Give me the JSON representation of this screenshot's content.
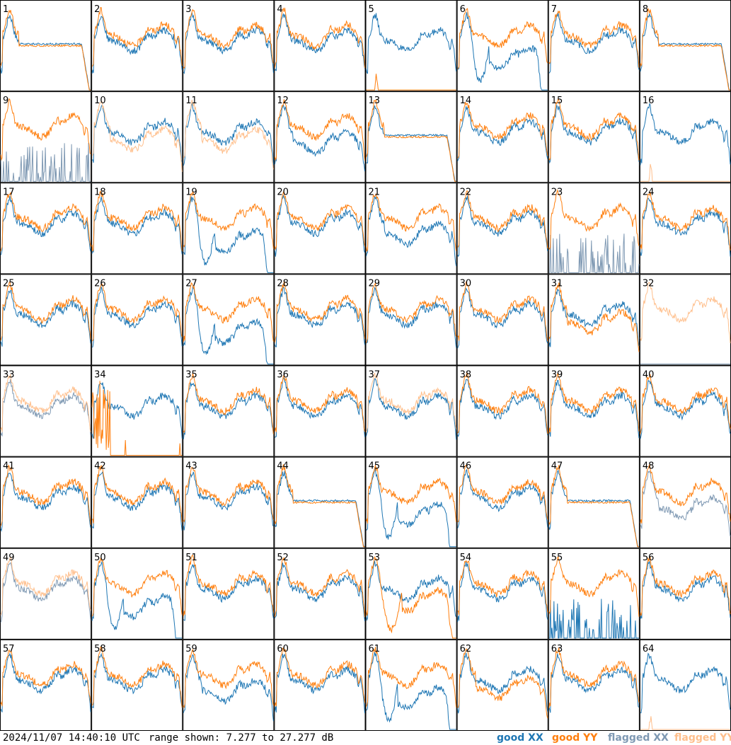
{
  "footer": {
    "timestamp": "2024/11/07 14:40:10 UTC",
    "range_text": "range shown: 7.277 to 27.277 dB"
  },
  "legend": {
    "good_xx": "good XX",
    "good_yy": "good YY",
    "flagged_xx": "flagged XX",
    "flagged_yy": "flagged YY"
  },
  "colors": {
    "good_xx": "#1f77b4",
    "good_yy": "#ff7f0e",
    "flagged_xx": "#7f99b3",
    "flagged_yy": "#ffbf8c",
    "frame": "#000000"
  },
  "chart_data": {
    "type": "line",
    "title": "",
    "ylim": [
      7.277,
      27.277
    ],
    "yunit": "dB",
    "grid": false,
    "layout": "8x8 small multiples",
    "series_names": [
      "good XX",
      "good YY",
      "flagged XX",
      "flagged YY"
    ],
    "panels": [
      {
        "id": "1",
        "xx": "good",
        "yy": "good",
        "shape": "drop_taper"
      },
      {
        "id": "2",
        "xx": "good",
        "yy": "good",
        "shape": "normal"
      },
      {
        "id": "3",
        "xx": "good",
        "yy": "good",
        "shape": "normal"
      },
      {
        "id": "4",
        "xx": "good",
        "yy": "good",
        "shape": "normal"
      },
      {
        "id": "5",
        "xx": "good",
        "yy": "good",
        "shape": "yy_missing"
      },
      {
        "id": "6",
        "xx": "good",
        "yy": "good",
        "shape": "xx_dip"
      },
      {
        "id": "7",
        "xx": "good",
        "yy": "good",
        "shape": "normal"
      },
      {
        "id": "8",
        "xx": "good",
        "yy": "good",
        "shape": "drop_taper"
      },
      {
        "id": "9",
        "xx": "flagged",
        "yy": "good",
        "shape": "xx_spikes"
      },
      {
        "id": "10",
        "xx": "good",
        "yy": "flagged",
        "shape": "yy_low"
      },
      {
        "id": "11",
        "xx": "good",
        "yy": "flagged",
        "shape": "yy_low"
      },
      {
        "id": "12",
        "xx": "good",
        "yy": "good",
        "shape": "xx_low"
      },
      {
        "id": "13",
        "xx": "good",
        "yy": "good",
        "shape": "drop_taper"
      },
      {
        "id": "14",
        "xx": "good",
        "yy": "good",
        "shape": "normal"
      },
      {
        "id": "15",
        "xx": "good",
        "yy": "good",
        "shape": "normal"
      },
      {
        "id": "16",
        "xx": "good",
        "yy": "flagged",
        "shape": "yy_missing"
      },
      {
        "id": "17",
        "xx": "good",
        "yy": "good",
        "shape": "normal"
      },
      {
        "id": "18",
        "xx": "good",
        "yy": "good",
        "shape": "normal"
      },
      {
        "id": "19",
        "xx": "good",
        "yy": "good",
        "shape": "xx_dip"
      },
      {
        "id": "20",
        "xx": "good",
        "yy": "good",
        "shape": "normal"
      },
      {
        "id": "21",
        "xx": "good",
        "yy": "good",
        "shape": "xx_low"
      },
      {
        "id": "22",
        "xx": "good",
        "yy": "good",
        "shape": "normal"
      },
      {
        "id": "23",
        "xx": "flagged",
        "yy": "good",
        "shape": "xx_spikes"
      },
      {
        "id": "24",
        "xx": "good",
        "yy": "good",
        "shape": "normal"
      },
      {
        "id": "25",
        "xx": "good",
        "yy": "good",
        "shape": "normal"
      },
      {
        "id": "26",
        "xx": "good",
        "yy": "good",
        "shape": "normal"
      },
      {
        "id": "27",
        "xx": "good",
        "yy": "good",
        "shape": "xx_dip"
      },
      {
        "id": "28",
        "xx": "good",
        "yy": "good",
        "shape": "normal"
      },
      {
        "id": "29",
        "xx": "good",
        "yy": "good",
        "shape": "normal"
      },
      {
        "id": "30",
        "xx": "good",
        "yy": "good",
        "shape": "normal"
      },
      {
        "id": "31",
        "xx": "good",
        "yy": "good",
        "shape": "yy_low"
      },
      {
        "id": "32",
        "xx": "flagged",
        "yy": "flagged",
        "shape": "xx_missing"
      },
      {
        "id": "33",
        "xx": "flagged",
        "yy": "flagged",
        "shape": "normal"
      },
      {
        "id": "34",
        "xx": "good",
        "yy": "good",
        "shape": "yy_spikes"
      },
      {
        "id": "35",
        "xx": "good",
        "yy": "good",
        "shape": "normal"
      },
      {
        "id": "36",
        "xx": "good",
        "yy": "good",
        "shape": "normal"
      },
      {
        "id": "37",
        "xx": "good",
        "yy": "flagged",
        "shape": "normal"
      },
      {
        "id": "38",
        "xx": "good",
        "yy": "good",
        "shape": "normal"
      },
      {
        "id": "39",
        "xx": "good",
        "yy": "good",
        "shape": "normal"
      },
      {
        "id": "40",
        "xx": "good",
        "yy": "good",
        "shape": "normal"
      },
      {
        "id": "41",
        "xx": "good",
        "yy": "good",
        "shape": "normal"
      },
      {
        "id": "42",
        "xx": "good",
        "yy": "good",
        "shape": "normal"
      },
      {
        "id": "43",
        "xx": "good",
        "yy": "good",
        "shape": "normal"
      },
      {
        "id": "44",
        "xx": "good",
        "yy": "good",
        "shape": "drop_taper"
      },
      {
        "id": "45",
        "xx": "good",
        "yy": "good",
        "shape": "xx_dip"
      },
      {
        "id": "46",
        "xx": "good",
        "yy": "good",
        "shape": "normal"
      },
      {
        "id": "47",
        "xx": "good",
        "yy": "good",
        "shape": "drop_taper"
      },
      {
        "id": "48",
        "xx": "flagged",
        "yy": "good",
        "shape": "xx_low"
      },
      {
        "id": "49",
        "xx": "flagged",
        "yy": "flagged",
        "shape": "normal"
      },
      {
        "id": "50",
        "xx": "good",
        "yy": "good",
        "shape": "xx_dip"
      },
      {
        "id": "51",
        "xx": "good",
        "yy": "good",
        "shape": "normal"
      },
      {
        "id": "52",
        "xx": "good",
        "yy": "good",
        "shape": "normal"
      },
      {
        "id": "53",
        "xx": "good",
        "yy": "good",
        "shape": "yy_dip"
      },
      {
        "id": "54",
        "xx": "good",
        "yy": "good",
        "shape": "normal"
      },
      {
        "id": "55",
        "xx": "good",
        "yy": "good",
        "shape": "xx_spikes"
      },
      {
        "id": "56",
        "xx": "good",
        "yy": "good",
        "shape": "normal"
      },
      {
        "id": "57",
        "xx": "good",
        "yy": "good",
        "shape": "normal"
      },
      {
        "id": "58",
        "xx": "good",
        "yy": "good",
        "shape": "normal"
      },
      {
        "id": "59",
        "xx": "good",
        "yy": "good",
        "shape": "xx_low"
      },
      {
        "id": "60",
        "xx": "good",
        "yy": "good",
        "shape": "normal"
      },
      {
        "id": "61",
        "xx": "good",
        "yy": "good",
        "shape": "xx_dip"
      },
      {
        "id": "62",
        "xx": "good",
        "yy": "good",
        "shape": "yy_low"
      },
      {
        "id": "63",
        "xx": "good",
        "yy": "good",
        "shape": "normal"
      },
      {
        "id": "64",
        "xx": "good",
        "yy": "flagged",
        "shape": "yy_missing"
      }
    ]
  }
}
